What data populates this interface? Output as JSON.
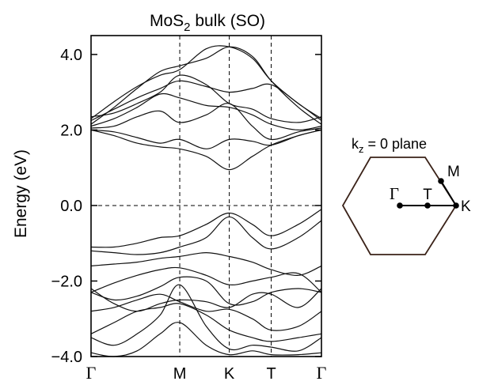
{
  "chart_data": [
    {
      "type": "line",
      "title": {
        "prefix": "MoS",
        "sub": "2",
        "suffix": " bulk (SO)"
      },
      "ylabel": "Energy (eV)",
      "ylim": [
        -4.0,
        4.5
      ],
      "yticks": [
        {
          "value": 4.0,
          "label": "4.0"
        },
        {
          "value": 2.0,
          "label": "2.0"
        },
        {
          "value": 0.0,
          "label": "0.0"
        },
        {
          "value": -2.0,
          "label": "−2.0"
        },
        {
          "value": -4.0,
          "label": "−4.0"
        }
      ],
      "kpath": [
        {
          "label": "Γ",
          "pos": 0.0
        },
        {
          "label": "M",
          "pos": 0.385
        },
        {
          "label": "K",
          "pos": 0.6
        },
        {
          "label": "T",
          "pos": 0.782
        },
        {
          "label": "Γ",
          "pos": 1.0
        }
      ],
      "fermi_level": 0.0,
      "grid": "dashed at high-symmetry points and 0 eV",
      "series": [
        {
          "x": [
            0,
            0.1,
            0.2,
            0.3,
            0.385,
            0.5,
            0.6,
            0.7,
            0.782,
            0.9,
            1.0
          ],
          "y": [
            2.15,
            2.6,
            3.1,
            3.55,
            3.7,
            3.9,
            4.2,
            3.95,
            3.3,
            2.6,
            2.15
          ]
        },
        {
          "x": [
            0,
            0.1,
            0.2,
            0.3,
            0.385,
            0.5,
            0.6,
            0.7,
            0.782,
            0.9,
            1.0
          ],
          "y": [
            2.3,
            2.75,
            3.15,
            3.45,
            3.6,
            4.15,
            4.2,
            3.9,
            3.3,
            2.7,
            2.3
          ]
        },
        {
          "x": [
            0,
            0.1,
            0.2,
            0.3,
            0.385,
            0.5,
            0.6,
            0.7,
            0.782,
            0.9,
            1.0
          ],
          "y": [
            2.25,
            2.55,
            2.85,
            3.1,
            3.3,
            3.15,
            3.0,
            3.1,
            3.2,
            2.7,
            2.25
          ]
        },
        {
          "x": [
            0,
            0.1,
            0.2,
            0.3,
            0.385,
            0.5,
            0.6,
            0.7,
            0.782,
            0.9,
            1.0
          ],
          "y": [
            2.35,
            2.45,
            2.7,
            3.0,
            3.45,
            3.2,
            2.7,
            2.55,
            2.3,
            2.2,
            2.35
          ]
        },
        {
          "x": [
            0,
            0.1,
            0.2,
            0.3,
            0.385,
            0.5,
            0.6,
            0.7,
            0.782,
            0.9,
            1.0
          ],
          "y": [
            2.1,
            2.3,
            2.6,
            2.95,
            2.85,
            2.65,
            2.6,
            2.4,
            2.15,
            2.0,
            2.1
          ]
        },
        {
          "x": [
            0,
            0.1,
            0.2,
            0.3,
            0.385,
            0.5,
            0.6,
            0.7,
            0.782,
            0.9,
            1.0
          ],
          "y": [
            2.05,
            2.1,
            2.35,
            2.5,
            2.2,
            2.4,
            2.7,
            2.1,
            1.75,
            1.95,
            2.05
          ]
        },
        {
          "x": [
            0,
            0.1,
            0.2,
            0.3,
            0.385,
            0.5,
            0.6,
            0.7,
            0.782,
            0.9,
            1.0
          ],
          "y": [
            2.0,
            1.95,
            1.8,
            1.65,
            1.75,
            1.5,
            1.75,
            1.7,
            1.6,
            1.85,
            2.0
          ]
        },
        {
          "x": [
            0,
            0.1,
            0.2,
            0.3,
            0.385,
            0.5,
            0.6,
            0.7,
            0.782,
            0.9,
            1.0
          ],
          "y": [
            2.0,
            1.85,
            1.65,
            1.55,
            1.5,
            1.3,
            0.95,
            1.3,
            1.6,
            1.85,
            2.0
          ]
        },
        {
          "x": [
            0,
            0.1,
            0.2,
            0.3,
            0.385,
            0.5,
            0.6,
            0.7,
            0.782,
            0.9,
            1.0
          ],
          "y": [
            -1.1,
            -1.1,
            -1.0,
            -0.85,
            -0.8,
            -0.5,
            -0.2,
            -0.5,
            -0.8,
            -0.5,
            -0.1
          ]
        },
        {
          "x": [
            0,
            0.1,
            0.2,
            0.3,
            0.385,
            0.5,
            0.6,
            0.7,
            0.782,
            0.9,
            1.0
          ],
          "y": [
            -1.2,
            -1.25,
            -1.3,
            -1.25,
            -1.1,
            -0.85,
            -0.3,
            -0.85,
            -1.15,
            -0.85,
            -0.4
          ]
        },
        {
          "x": [
            0,
            0.1,
            0.2,
            0.3,
            0.385,
            0.5,
            0.6,
            0.7,
            0.782,
            0.9,
            1.0
          ],
          "y": [
            -1.6,
            -1.55,
            -1.5,
            -1.4,
            -1.35,
            -1.25,
            -1.35,
            -1.5,
            -1.7,
            -1.85,
            -1.6
          ]
        },
        {
          "x": [
            0,
            0.1,
            0.2,
            0.3,
            0.385,
            0.5,
            0.6,
            0.7,
            0.782,
            0.9,
            1.0
          ],
          "y": [
            -2.3,
            -2.05,
            -1.85,
            -1.7,
            -1.65,
            -1.85,
            -2.1,
            -2.0,
            -1.9,
            -1.8,
            -2.3
          ]
        },
        {
          "x": [
            0,
            0.1,
            0.2,
            0.3,
            0.385,
            0.5,
            0.6,
            0.7,
            0.782,
            0.9,
            1.0
          ],
          "y": [
            -2.3,
            -2.5,
            -2.4,
            -2.15,
            -1.9,
            -2.0,
            -2.6,
            -2.55,
            -2.3,
            -2.2,
            -2.3
          ]
        },
        {
          "x": [
            0,
            0.1,
            0.2,
            0.3,
            0.385,
            0.5,
            0.6,
            0.7,
            0.782,
            0.9,
            1.0
          ],
          "y": [
            -2.2,
            -2.6,
            -2.8,
            -2.6,
            -2.5,
            -2.55,
            -2.7,
            -2.35,
            -2.35,
            -2.7,
            -2.2
          ]
        },
        {
          "x": [
            0,
            0.1,
            0.2,
            0.3,
            0.385,
            0.5,
            0.6,
            0.7,
            0.782,
            0.9,
            1.0
          ],
          "y": [
            -2.8,
            -2.7,
            -2.5,
            -2.35,
            -2.55,
            -2.8,
            -2.75,
            -3.0,
            -3.3,
            -3.2,
            -2.8
          ]
        },
        {
          "x": [
            0,
            0.1,
            0.2,
            0.3,
            0.385,
            0.5,
            0.6,
            0.7,
            0.782,
            0.9,
            1.0
          ],
          "y": [
            -3.4,
            -3.1,
            -2.8,
            -2.7,
            -2.6,
            -2.9,
            -3.3,
            -3.5,
            -3.6,
            -3.5,
            -3.4
          ]
        },
        {
          "x": [
            0,
            0.1,
            0.2,
            0.3,
            0.385,
            0.5,
            0.6,
            0.7,
            0.782,
            0.9,
            1.0
          ],
          "y": [
            -3.5,
            -3.7,
            -3.4,
            -2.9,
            -2.1,
            -3.2,
            -3.8,
            -3.7,
            -3.75,
            -3.85,
            -3.5
          ]
        },
        {
          "x": [
            0,
            0.1,
            0.2,
            0.3,
            0.385,
            0.5,
            0.6,
            0.7,
            0.782,
            0.9,
            1.0
          ],
          "y": [
            -3.9,
            -4.0,
            -3.85,
            -3.4,
            -3.1,
            -3.7,
            -3.95,
            -3.85,
            -3.95,
            -3.95,
            -3.9
          ]
        }
      ]
    },
    {
      "type": "diagram",
      "title": {
        "prefix": "k",
        "sub": "z",
        "suffix": " = 0 plane"
      },
      "points": [
        {
          "label": "Γ"
        },
        {
          "label": "T"
        },
        {
          "label": "K"
        },
        {
          "label": "M"
        }
      ]
    }
  ]
}
